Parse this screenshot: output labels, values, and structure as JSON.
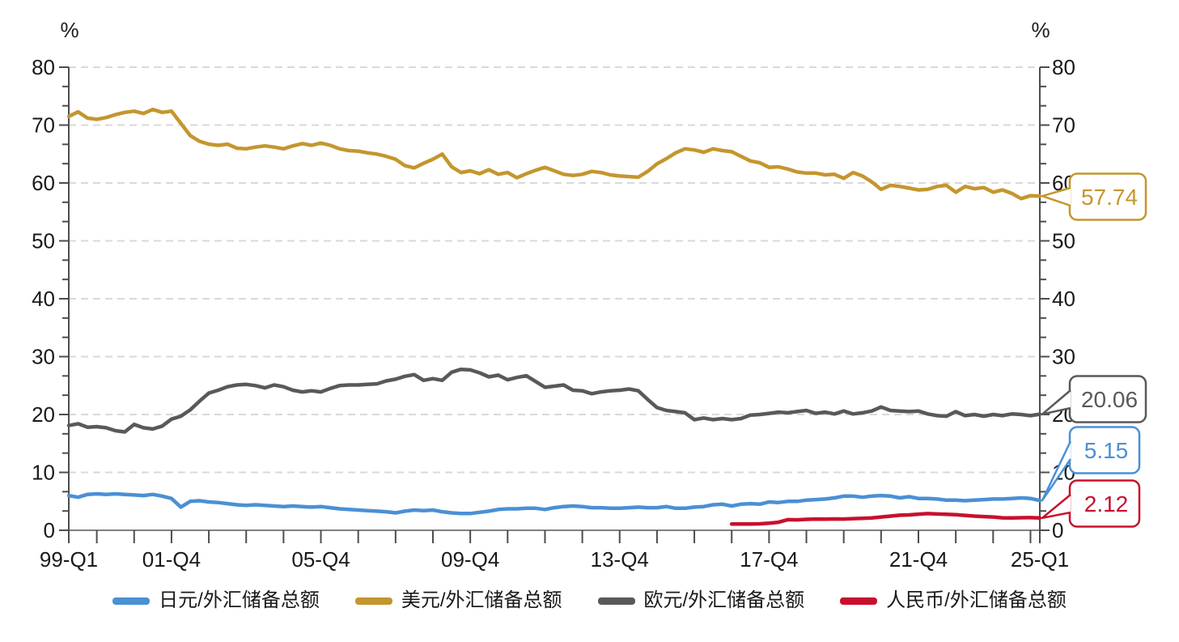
{
  "colors": {
    "grid": "#d9d9d9",
    "axis": "#4d4d4d",
    "baseline": "#808080",
    "text": "#1a1a1a",
    "background": "#ffffff"
  },
  "axes": {
    "left_unit": "%",
    "right_unit": "%",
    "y_ticks": [
      0,
      10,
      20,
      30,
      40,
      50,
      60,
      70,
      80
    ],
    "ylim": [
      0,
      80
    ],
    "minor_y_divisions_per_major": 3,
    "x_start": "1999-Q1",
    "x_end": "2025-Q1",
    "x_tick_every": "yearly at Q4",
    "grid_style": "dashed horizontal"
  },
  "chart_data": {
    "type": "line",
    "x_quarters": 105,
    "x_labels": [
      {
        "q": 0,
        "text": "99-Q1"
      },
      {
        "q": 11,
        "text": "01-Q4"
      },
      {
        "q": 27,
        "text": "05-Q4"
      },
      {
        "q": 43,
        "text": "09-Q4"
      },
      {
        "q": 59,
        "text": "13-Q4"
      },
      {
        "q": 75,
        "text": "17-Q4"
      },
      {
        "q": 91,
        "text": "21-Q4"
      },
      {
        "q": 104,
        "text": "25-Q1"
      }
    ],
    "ylim": [
      0,
      80
    ],
    "legend_position": "bottom",
    "series": [
      {
        "key": "jpy",
        "name": "日元/外汇储备总额",
        "color": "#4a90d5",
        "end_label": "5.15",
        "start_index": 0,
        "values": [
          6.0,
          5.7,
          6.2,
          6.3,
          6.2,
          6.3,
          6.2,
          6.1,
          6.0,
          6.2,
          5.9,
          5.5,
          4.0,
          5.0,
          5.1,
          4.9,
          4.8,
          4.6,
          4.4,
          4.3,
          4.4,
          4.3,
          4.2,
          4.1,
          4.2,
          4.1,
          4.0,
          4.1,
          3.9,
          3.7,
          3.6,
          3.5,
          3.4,
          3.3,
          3.2,
          3.0,
          3.3,
          3.5,
          3.4,
          3.5,
          3.2,
          3.0,
          2.9,
          2.9,
          3.1,
          3.3,
          3.6,
          3.7,
          3.7,
          3.8,
          3.8,
          3.6,
          3.9,
          4.1,
          4.2,
          4.1,
          3.9,
          3.9,
          3.8,
          3.8,
          3.9,
          4.0,
          3.9,
          3.9,
          4.1,
          3.8,
          3.8,
          4.0,
          4.1,
          4.4,
          4.5,
          4.2,
          4.5,
          4.6,
          4.5,
          4.9,
          4.8,
          5.0,
          5.0,
          5.2,
          5.3,
          5.4,
          5.6,
          5.9,
          5.9,
          5.7,
          5.9,
          6.0,
          5.9,
          5.6,
          5.8,
          5.5,
          5.5,
          5.4,
          5.2,
          5.2,
          5.1,
          5.2,
          5.3,
          5.4,
          5.4,
          5.5,
          5.6,
          5.5,
          5.15
        ]
      },
      {
        "key": "usd",
        "name": "美元/外汇储备总额",
        "color": "#c4962e",
        "end_label": "57.74",
        "start_index": 0,
        "values": [
          71.5,
          72.3,
          71.2,
          71.0,
          71.3,
          71.8,
          72.2,
          72.4,
          72.0,
          72.7,
          72.2,
          72.4,
          70.3,
          68.2,
          67.2,
          66.7,
          66.5,
          66.7,
          66.0,
          65.9,
          66.2,
          66.4,
          66.2,
          65.9,
          66.4,
          66.8,
          66.5,
          66.9,
          66.5,
          65.9,
          65.6,
          65.5,
          65.2,
          65.0,
          64.6,
          64.1,
          63.0,
          62.6,
          63.4,
          64.1,
          65.0,
          62.8,
          61.8,
          62.1,
          61.6,
          62.3,
          61.5,
          61.8,
          60.9,
          61.6,
          62.2,
          62.7,
          62.1,
          61.5,
          61.3,
          61.5,
          62.0,
          61.8,
          61.4,
          61.2,
          61.1,
          61.0,
          62.0,
          63.3,
          64.2,
          65.2,
          65.9,
          65.7,
          65.3,
          65.9,
          65.6,
          65.4,
          64.6,
          63.8,
          63.5,
          62.7,
          62.8,
          62.4,
          61.9,
          61.7,
          61.7,
          61.4,
          61.5,
          60.8,
          61.8,
          61.2,
          60.2,
          58.9,
          59.6,
          59.4,
          59.1,
          58.8,
          58.9,
          59.4,
          59.6,
          58.4,
          59.4,
          59.0,
          59.2,
          58.4,
          58.8,
          58.2,
          57.3,
          57.8,
          57.74
        ]
      },
      {
        "key": "eur",
        "name": "欧元/外汇储备总额",
        "color": "#595959",
        "end_label": "20.06",
        "start_index": 0,
        "values": [
          18.1,
          18.4,
          17.8,
          17.9,
          17.7,
          17.2,
          17.0,
          18.3,
          17.7,
          17.5,
          18.0,
          19.2,
          19.7,
          20.8,
          22.3,
          23.7,
          24.2,
          24.8,
          25.1,
          25.2,
          25.0,
          24.6,
          25.1,
          24.8,
          24.2,
          23.9,
          24.1,
          23.9,
          24.5,
          25.0,
          25.1,
          25.1,
          25.2,
          25.3,
          25.8,
          26.1,
          26.6,
          26.9,
          25.9,
          26.2,
          25.9,
          27.3,
          27.8,
          27.7,
          27.2,
          26.5,
          26.8,
          26.0,
          26.4,
          26.7,
          25.7,
          24.7,
          24.9,
          25.1,
          24.2,
          24.1,
          23.6,
          23.9,
          24.1,
          24.2,
          24.4,
          24.1,
          22.6,
          21.2,
          20.7,
          20.5,
          20.3,
          19.1,
          19.4,
          19.1,
          19.3,
          19.1,
          19.3,
          19.9,
          20.0,
          20.2,
          20.4,
          20.3,
          20.5,
          20.7,
          20.2,
          20.4,
          20.1,
          20.6,
          20.1,
          20.3,
          20.6,
          21.3,
          20.7,
          20.6,
          20.5,
          20.6,
          20.1,
          19.8,
          19.7,
          20.5,
          19.8,
          20.0,
          19.7,
          20.0,
          19.8,
          20.1,
          20.0,
          19.8,
          20.06
        ]
      },
      {
        "key": "cny",
        "name": "人民币/外汇储备总额",
        "color": "#c8102e",
        "end_label": "2.12",
        "start_index": 71,
        "values": [
          1.08,
          1.08,
          1.07,
          1.12,
          1.23,
          1.39,
          1.83,
          1.8,
          1.89,
          1.95,
          1.92,
          1.96,
          1.94,
          2.02,
          2.05,
          2.13,
          2.29,
          2.45,
          2.6,
          2.66,
          2.79,
          2.88,
          2.81,
          2.75,
          2.69,
          2.58,
          2.45,
          2.37,
          2.29,
          2.15,
          2.14,
          2.17,
          2.18,
          2.12
        ]
      }
    ]
  }
}
